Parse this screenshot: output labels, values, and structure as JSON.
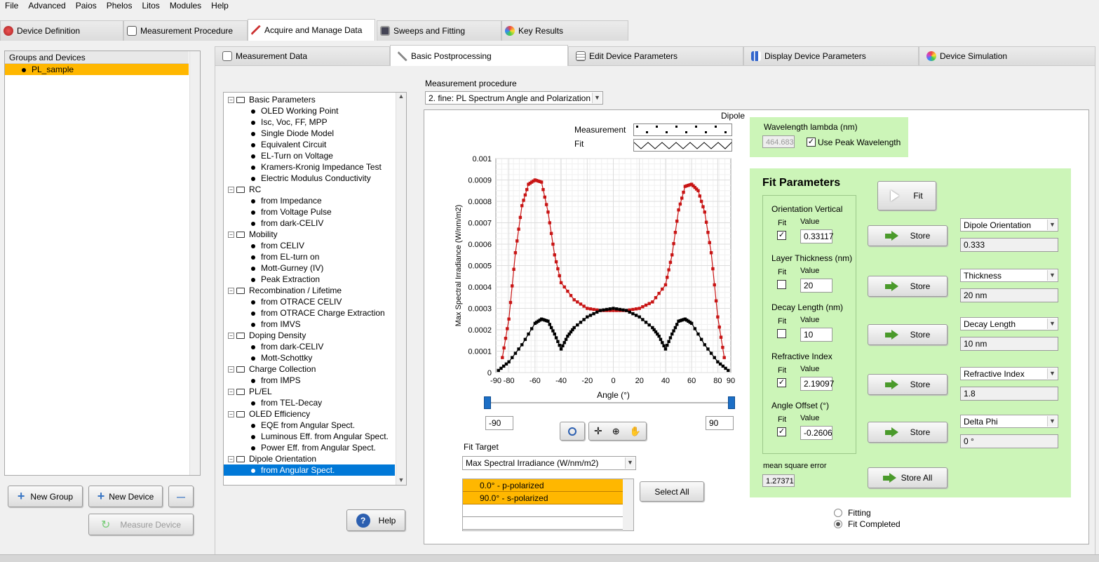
{
  "menu": [
    "File",
    "Advanced",
    "Paios",
    "Phelos",
    "Litos",
    "Modules",
    "Help"
  ],
  "main_tabs": [
    {
      "label": "Device Definition",
      "icon": "device-icon",
      "active": false
    },
    {
      "label": "Measurement Procedure",
      "icon": "document-icon",
      "active": false
    },
    {
      "label": "Acquire and Manage Data",
      "icon": "chart-icon",
      "active": true
    },
    {
      "label": "Sweeps and Fitting",
      "icon": "monitor-icon",
      "active": false
    },
    {
      "label": "Key Results",
      "icon": "globe-icon",
      "active": false
    }
  ],
  "groups": {
    "header": "Groups and Devices",
    "items": [
      "PL_sample"
    ]
  },
  "left_buttons": {
    "new_group": "New Group",
    "new_device": "New Device",
    "remove": "—",
    "measure_device": "Measure Device"
  },
  "sub_tabs": [
    {
      "label": "Measurement Data",
      "icon": "chart-icon"
    },
    {
      "label": "Basic Postprocessing",
      "icon": "pen-icon"
    },
    {
      "label": "Edit Device Parameters",
      "icon": "table-icon"
    },
    {
      "label": "Display Device Parameters",
      "icon": "bar-icon"
    },
    {
      "label": "Device Simulation",
      "icon": "color-wheel-icon"
    }
  ],
  "tree": [
    {
      "label": "Basic Parameters",
      "level": 0,
      "expand": "−"
    },
    {
      "label": "OLED Working Point",
      "level": 1
    },
    {
      "label": "Isc, Voc, FF, MPP",
      "level": 1
    },
    {
      "label": "Single Diode Model",
      "level": 1
    },
    {
      "label": "Equivalent Circuit",
      "level": 1
    },
    {
      "label": "EL-Turn on Voltage",
      "level": 1
    },
    {
      "label": "Kramers-Kronig Impedance Test",
      "level": 1
    },
    {
      "label": "Electric Modulus Conductivity",
      "level": 1
    },
    {
      "label": "RC",
      "level": 0,
      "expand": "−"
    },
    {
      "label": "from Impedance",
      "level": 1
    },
    {
      "label": "from Voltage Pulse",
      "level": 1
    },
    {
      "label": "from dark-CELIV",
      "level": 1
    },
    {
      "label": "Mobility",
      "level": 0,
      "expand": "−"
    },
    {
      "label": "from CELIV",
      "level": 1
    },
    {
      "label": "from EL-turn on",
      "level": 1
    },
    {
      "label": "Mott-Gurney (IV)",
      "level": 1
    },
    {
      "label": "Peak Extraction",
      "level": 1
    },
    {
      "label": "Recombination / Lifetime",
      "level": 0,
      "expand": "−"
    },
    {
      "label": "from OTRACE CELIV",
      "level": 1
    },
    {
      "label": "from OTRACE Charge Extraction",
      "level": 1
    },
    {
      "label": "from IMVS",
      "level": 1
    },
    {
      "label": "Doping Density",
      "level": 0,
      "expand": "−"
    },
    {
      "label": "from dark-CELIV",
      "level": 1
    },
    {
      "label": "Mott-Schottky",
      "level": 1
    },
    {
      "label": "Charge Collection",
      "level": 0,
      "expand": "−"
    },
    {
      "label": "from IMPS",
      "level": 1
    },
    {
      "label": "PL/EL",
      "level": 0,
      "expand": "−"
    },
    {
      "label": "from TEL-Decay",
      "level": 1
    },
    {
      "label": "OLED Efficiency",
      "level": 0,
      "expand": "−"
    },
    {
      "label": "EQE from Angular Spect.",
      "level": 1
    },
    {
      "label": "Luminous Eff. from Angular Spect.",
      "level": 1
    },
    {
      "label": "Power Eff. from Angular Spect.",
      "level": 1
    },
    {
      "label": "Dipole Orientation",
      "level": 0,
      "expand": "−"
    },
    {
      "label": "from Angular Spect.",
      "level": 1,
      "selected": true
    }
  ],
  "help_button": "Help",
  "procedure": {
    "label": "Measurement procedure",
    "value": "2. fine: PL Spectrum Angle and Polarization"
  },
  "plot": {
    "legend_title": "Dipole",
    "legend_measurement": "Measurement",
    "legend_fit": "Fit",
    "range_min": "-90",
    "range_max": "90",
    "colors": {
      "p": "#c81414",
      "s": "#000000"
    }
  },
  "chart_data": {
    "type": "scatter",
    "title": "",
    "xlabel": "Angle (°)",
    "ylabel": "Max Spectral Irradiance (W/nm/m2)",
    "xlim": [
      -90,
      90
    ],
    "ylim": [
      0,
      0.001
    ],
    "xticks": [
      "-90",
      "-80",
      "-60",
      "-40",
      "-20",
      "0",
      "20",
      "40",
      "60",
      "80",
      "90"
    ],
    "yticks": [
      "0",
      "0.0001",
      "0.0002",
      "0.0003",
      "0.0004",
      "0.0005",
      "0.0006",
      "0.0007",
      "0.0008",
      "0.0009",
      "0.001"
    ],
    "series": [
      {
        "color": "#c81414",
        "x": [
          -85,
          -80,
          -75,
          -70,
          -65,
          -60,
          -55,
          -50,
          -45,
          -40,
          -30,
          -20,
          -10,
          0,
          10,
          20,
          30,
          40,
          45,
          50,
          55,
          60,
          65,
          70,
          75,
          80,
          85
        ],
        "y": [
          7e-05,
          0.00025,
          0.00056,
          0.00078,
          0.00088,
          0.0009,
          0.00089,
          0.00075,
          0.00055,
          0.00042,
          0.00034,
          0.0003,
          0.00029,
          0.00029,
          0.00029,
          0.0003,
          0.00033,
          0.00041,
          0.00055,
          0.00076,
          0.00087,
          0.00088,
          0.00085,
          0.00075,
          0.00056,
          0.00026,
          7e-05
        ]
      },
      {
        "color": "#000000",
        "x": [
          -88,
          -80,
          -70,
          -60,
          -55,
          -50,
          -45,
          -40,
          -35,
          -30,
          -20,
          -10,
          0,
          10,
          20,
          30,
          35,
          40,
          45,
          50,
          55,
          60,
          70,
          80,
          88
        ],
        "y": [
          1e-05,
          5e-05,
          0.00013,
          0.00023,
          0.00025,
          0.00024,
          0.00018,
          0.00011,
          0.00017,
          0.00021,
          0.00026,
          0.00029,
          0.0003,
          0.00029,
          0.00026,
          0.00021,
          0.00017,
          0.00011,
          0.00018,
          0.00024,
          0.00025,
          0.00023,
          0.00013,
          5e-05,
          1e-05
        ]
      }
    ]
  },
  "fit_target": {
    "label": "Fit Target",
    "value": "Max Spectral Irradiance (W/nm/m2)",
    "items": [
      "0.0° - p-polarized",
      "90.0° - s-polarized"
    ],
    "select_all": "Select All"
  },
  "wavelength": {
    "label": "Wavelength lambda (nm)",
    "value": "464.683",
    "use_peak": "Use Peak Wavelength",
    "use_peak_checked": true
  },
  "fit_params": {
    "title": "Fit Parameters",
    "fit_button": "Fit",
    "fit_col": "Fit",
    "value_col": "Value",
    "store": "Store",
    "store_all": "Store All",
    "mse_label": "mean square error",
    "mse_value": "1.27371",
    "rows": [
      {
        "name": "Orientation Vertical",
        "checked": true,
        "value": "0.33117",
        "target": "Dipole Orientation",
        "stored": "0.333"
      },
      {
        "name": "Layer Thickness (nm)",
        "checked": false,
        "value": "20",
        "target": "Thickness",
        "stored": "20 nm"
      },
      {
        "name": "Decay Length (nm)",
        "checked": false,
        "value": "10",
        "target": "Decay Length",
        "stored": "10 nm"
      },
      {
        "name": "Refractive Index",
        "checked": true,
        "value": "2.19097",
        "target": "Refractive Index",
        "stored": "1.8"
      },
      {
        "name": "Angle Offset  (°)",
        "checked": true,
        "value": "-0.2606",
        "target": "Delta Phi",
        "stored": "0 °"
      }
    ]
  },
  "status": {
    "fitting": "Fitting",
    "fit_completed": "Fit Completed"
  }
}
